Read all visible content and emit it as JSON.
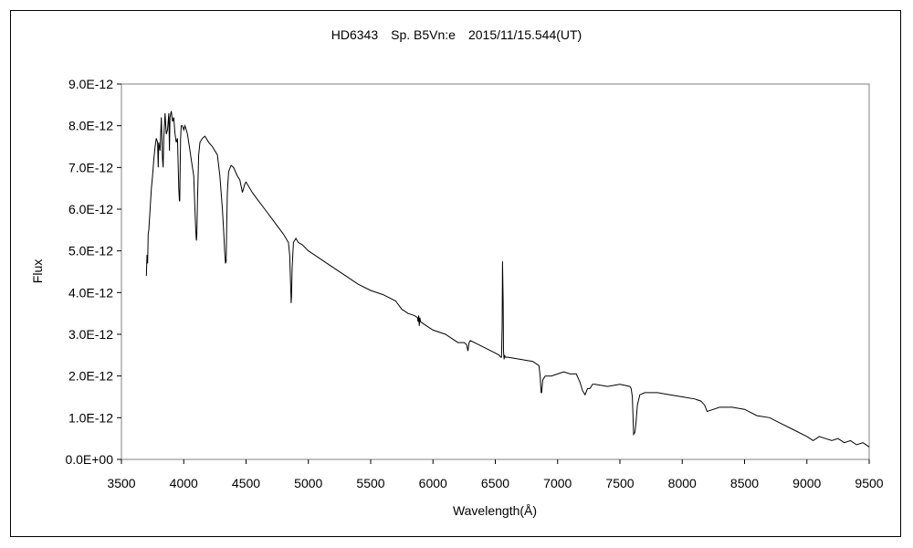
{
  "chart_data": {
    "type": "line",
    "title": "HD6343　Sp. B5Vn:e　2015/11/15.544(UT)",
    "xlabel": "Wavelength(Å)",
    "ylabel": "Flux",
    "xlim": [
      3500,
      9500
    ],
    "ylim": [
      0,
      9e-12
    ],
    "x_ticks": [
      3500,
      4000,
      4500,
      5000,
      5500,
      6000,
      6500,
      7000,
      7500,
      8000,
      8500,
      9000,
      9500
    ],
    "x_tick_labels": [
      "3500",
      "4000",
      "4500",
      "5000",
      "5500",
      "6000",
      "6500",
      "7000",
      "7500",
      "8000",
      "8500",
      "9000",
      "9500"
    ],
    "y_ticks": [
      0,
      1e-12,
      2e-12,
      3e-12,
      4e-12,
      5e-12,
      6e-12,
      7e-12,
      8e-12,
      9e-12
    ],
    "y_tick_labels": [
      "0.0E+00",
      "1.0E-12",
      "2.0E-12",
      "3.0E-12",
      "4.0E-12",
      "5.0E-12",
      "6.0E-12",
      "7.0E-12",
      "8.0E-12",
      "9.0E-12"
    ],
    "grid": false,
    "legend": "none",
    "line_color": "#000000",
    "series": [
      {
        "x": [
          3700,
          3705,
          3710,
          3715,
          3720,
          3730,
          3740,
          3750,
          3760,
          3770,
          3780,
          3790,
          3795,
          3800,
          3810,
          3820,
          3830,
          3835,
          3840,
          3850,
          3860,
          3870,
          3880,
          3885,
          3890,
          3900,
          3910,
          3920,
          3930,
          3940,
          3950,
          3960,
          3965,
          3968,
          3970,
          3975,
          3980,
          3990,
          4000,
          4010,
          4020,
          4030,
          4040,
          4050,
          4060,
          4080,
          4090,
          4095,
          4100,
          4102,
          4105,
          4110,
          4120,
          4130,
          4150,
          4170,
          4200,
          4230,
          4250,
          4270,
          4290,
          4310,
          4320,
          4330,
          4335,
          4340,
          4342,
          4345,
          4350,
          4360,
          4380,
          4400,
          4430,
          4450,
          4471,
          4490,
          4500,
          4550,
          4600,
          4650,
          4700,
          4750,
          4800,
          4820,
          4840,
          4850,
          4855,
          4860,
          4862,
          4865,
          4870,
          4880,
          4900,
          4920,
          4950,
          5000,
          5050,
          5100,
          5200,
          5300,
          5400,
          5500,
          5600,
          5700,
          5750,
          5800,
          5850,
          5875,
          5880,
          5885,
          5890,
          5895,
          5900,
          5950,
          6000,
          6100,
          6200,
          6250,
          6270,
          6280,
          6290,
          6300,
          6400,
          6500,
          6530,
          6545,
          6550,
          6555,
          6558,
          6563,
          6566,
          6570,
          6575,
          6580,
          6600,
          6700,
          6800,
          6850,
          6860,
          6868,
          6872,
          6880,
          6900,
          6950,
          7000,
          7050,
          7100,
          7150,
          7180,
          7200,
          7220,
          7240,
          7260,
          7280,
          7300,
          7400,
          7500,
          7580,
          7590,
          7600,
          7610,
          7620,
          7630,
          7640,
          7660,
          7700,
          7750,
          7800,
          7900,
          8000,
          8100,
          8150,
          8180,
          8200,
          8250,
          8300,
          8400,
          8500,
          8600,
          8700,
          8800,
          8900,
          9000,
          9050,
          9100,
          9150,
          9200,
          9250,
          9300,
          9350,
          9400,
          9450,
          9500
        ],
        "y": [
          4.4e-12,
          4.9e-12,
          4.7e-12,
          5.4e-12,
          5.5e-12,
          6e-12,
          6.5e-12,
          6.8e-12,
          7.2e-12,
          7.5e-12,
          7.7e-12,
          7.6e-12,
          7e-12,
          7.6e-12,
          7.4e-12,
          8.2e-12,
          7.2e-12,
          7e-12,
          7.7e-12,
          8.3e-12,
          7.8e-12,
          7.9e-12,
          8.3e-12,
          7.4e-12,
          8.2e-12,
          8.35e-12,
          8.1e-12,
          8.2e-12,
          7.8e-12,
          7.6e-12,
          7.7e-12,
          6.5e-12,
          6.2e-12,
          6.2e-12,
          6.8e-12,
          7.7e-12,
          8e-12,
          8e-12,
          7.9e-12,
          8e-12,
          7.9e-12,
          7.8e-12,
          7.6e-12,
          7.4e-12,
          7.2e-12,
          6.8e-12,
          6e-12,
          5.6e-12,
          5.3e-12,
          5.25e-12,
          5.4e-12,
          6.2e-12,
          7.3e-12,
          7.6e-12,
          7.7e-12,
          7.75e-12,
          7.6e-12,
          7.5e-12,
          7.4e-12,
          7.3e-12,
          6.8e-12,
          6e-12,
          5.5e-12,
          4.9e-12,
          4.7e-12,
          4.75e-12,
          5e-12,
          5.6e-12,
          6.4e-12,
          6.9e-12,
          7.05e-12,
          7e-12,
          6.8e-12,
          6.7e-12,
          6.4e-12,
          6.6e-12,
          6.65e-12,
          6.4e-12,
          6.2e-12,
          6e-12,
          5.8e-12,
          5.6e-12,
          5.4e-12,
          5.3e-12,
          5.2e-12,
          4.9e-12,
          4.4e-12,
          4e-12,
          3.75e-12,
          3.9e-12,
          4.6e-12,
          5.2e-12,
          5.3e-12,
          5.2e-12,
          5.15e-12,
          5e-12,
          4.9e-12,
          4.8e-12,
          4.6e-12,
          4.4e-12,
          4.2e-12,
          4.05e-12,
          3.95e-12,
          3.8e-12,
          3.6e-12,
          3.5e-12,
          3.45e-12,
          3.4e-12,
          3.3e-12,
          3.45e-12,
          3.2e-12,
          3.4e-12,
          3.3e-12,
          3.2e-12,
          3.1e-12,
          3e-12,
          2.8e-12,
          2.8e-12,
          2.75e-12,
          2.6e-12,
          2.8e-12,
          2.85e-12,
          2.7e-12,
          2.55e-12,
          2.5e-12,
          2.45e-12,
          2.45e-12,
          3.2e-12,
          4.75e-12,
          3.8e-12,
          2.6e-12,
          2.4e-12,
          2.5e-12,
          2.45e-12,
          2.45e-12,
          2.4e-12,
          2.35e-12,
          2.25e-12,
          2e-12,
          1.6e-12,
          1.6e-12,
          1.9e-12,
          2e-12,
          2e-12,
          2.05e-12,
          2.1e-12,
          2.05e-12,
          2.05e-12,
          1.85e-12,
          1.65e-12,
          1.55e-12,
          1.7e-12,
          1.7e-12,
          1.8e-12,
          1.8e-12,
          1.75e-12,
          1.8e-12,
          1.75e-12,
          1.7e-12,
          1.5e-12,
          6e-13,
          6.5e-13,
          9e-13,
          1.3e-12,
          1.55e-12,
          1.6e-12,
          1.6e-12,
          1.6e-12,
          1.55e-12,
          1.5e-12,
          1.45e-12,
          1.4e-12,
          1.3e-12,
          1.15e-12,
          1.2e-12,
          1.25e-12,
          1.25e-12,
          1.2e-12,
          1.05e-12,
          1e-12,
          8.5e-13,
          7e-13,
          5.5e-13,
          4.5e-13,
          5.5e-13,
          5e-13,
          4.5e-13,
          5e-13,
          4e-13,
          4.5e-13,
          3.5e-13,
          4e-13,
          3e-13
        ]
      }
    ]
  }
}
